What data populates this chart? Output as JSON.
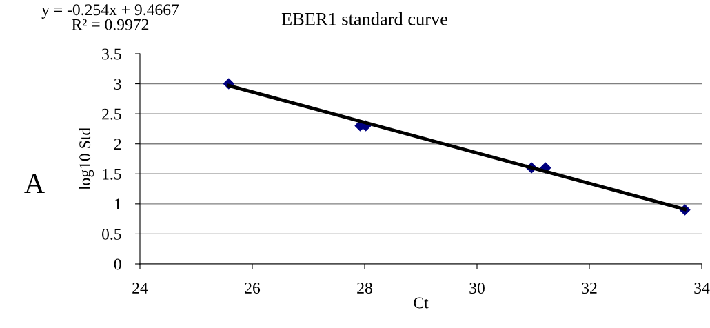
{
  "chart_data": {
    "type": "scatter",
    "title": "EBER1 standard curve",
    "xlabel": "Ct",
    "ylabel": "log10 Std",
    "annotations": [
      "y = -0.254x + 9.4667\nR² = 0.9972",
      "A"
    ],
    "xlim": [
      24,
      34
    ],
    "xticks": [
      24,
      26,
      28,
      30,
      32,
      34
    ],
    "ylim": [
      0,
      3.5
    ],
    "yticks": [
      0,
      0.5,
      1,
      1.5,
      2,
      2.5,
      3,
      3.5
    ],
    "grid": "y",
    "series": [
      {
        "marker": "diamond",
        "color": "#000080",
        "x": [
          25.58,
          27.92,
          28.02,
          30.97,
          31.22,
          33.7
        ],
        "values": [
          3.0,
          2.3,
          2.3,
          1.6,
          1.6,
          0.9
        ]
      },
      {
        "type": "line",
        "color": "#000000",
        "x": [
          25.58,
          33.7
        ],
        "values": [
          2.97,
          0.91
        ],
        "line_style": "solid",
        "marker": "none"
      }
    ]
  }
}
